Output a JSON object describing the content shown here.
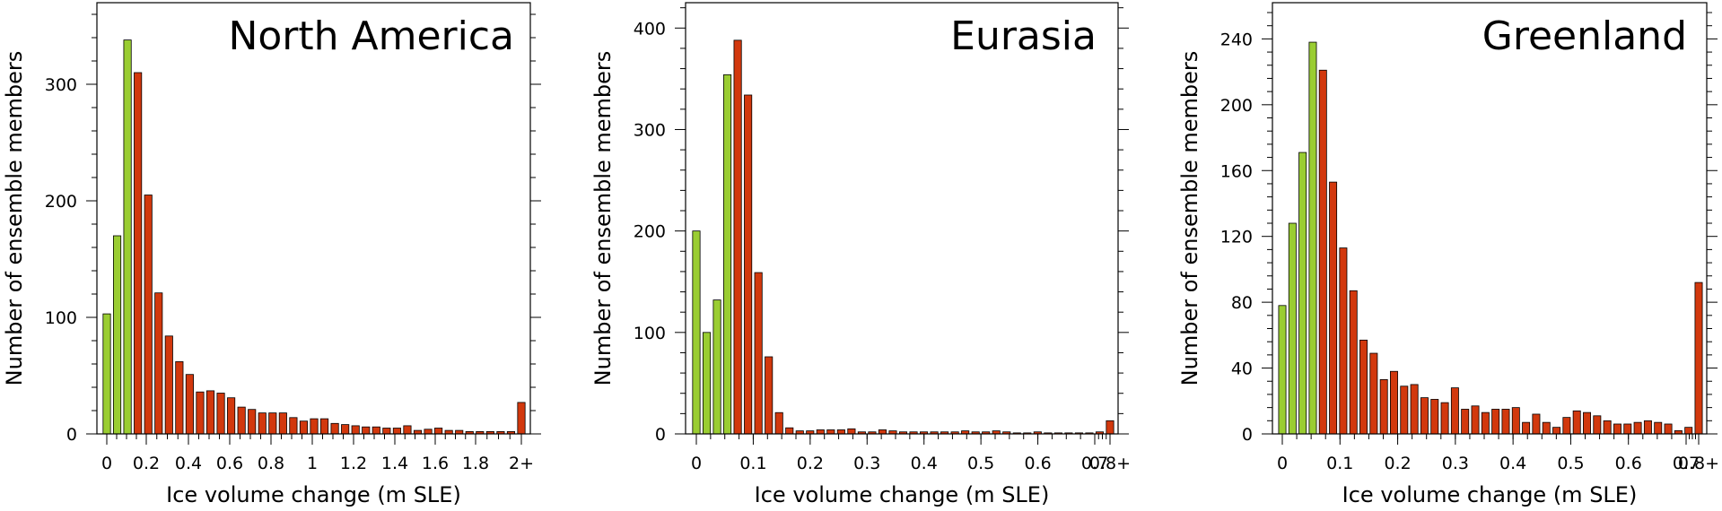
{
  "colors": {
    "green": "#9ACD32",
    "red": "#D2380D",
    "outline": "#000000"
  },
  "chart_data": [
    {
      "type": "bar",
      "title": "North America",
      "xlabel": "Ice volume change (m SLE)",
      "ylabel": "Number of ensemble members",
      "ylim": [
        0,
        370
      ],
      "y_ticks": [
        0,
        100,
        200,
        300
      ],
      "x_ticks": [
        "0",
        "0.2",
        "0.4",
        "0.6",
        "0.8",
        "1",
        "1.2",
        "1.4",
        "1.6",
        "1.8",
        "2+"
      ],
      "values": [
        103,
        170,
        338,
        310,
        205,
        121,
        84,
        62,
        51,
        36,
        37,
        35,
        31,
        23,
        21,
        18,
        18,
        18,
        14,
        11,
        13,
        13,
        9,
        8,
        7,
        6,
        6,
        5,
        5,
        7,
        3,
        4,
        5,
        3,
        3,
        2,
        2,
        2,
        2,
        2,
        27
      ],
      "green_count": 3
    },
    {
      "type": "bar",
      "title": "Eurasia",
      "xlabel": "Ice volume change (m SLE)",
      "ylabel": "Number of ensemble members",
      "ylim": [
        0,
        425
      ],
      "y_ticks": [
        0,
        100,
        200,
        300,
        400
      ],
      "x_ticks": [
        "0",
        "0.1",
        "0.2",
        "0.3",
        "0.4",
        "0.5",
        "0.6",
        "0.7",
        "0.8+"
      ],
      "values": [
        200,
        100,
        132,
        354,
        388,
        334,
        159,
        76,
        21,
        6,
        3,
        3,
        4,
        4,
        4,
        5,
        2,
        2,
        4,
        3,
        2,
        2,
        2,
        2,
        2,
        2,
        3,
        2,
        2,
        3,
        2,
        1,
        1,
        2,
        1,
        1,
        1,
        1,
        1,
        2,
        13
      ],
      "green_count": 4
    },
    {
      "type": "bar",
      "title": "Greenland",
      "xlabel": "Ice volume change (m SLE)",
      "ylabel": "Number of ensemble members",
      "ylim": [
        0,
        262
      ],
      "y_ticks": [
        0,
        40,
        80,
        120,
        160,
        200,
        240
      ],
      "x_ticks": [
        "0",
        "0.1",
        "0.2",
        "0.3",
        "0.4",
        "0.5",
        "0.6",
        "0.7",
        "0.8+"
      ],
      "values": [
        78,
        128,
        171,
        238,
        221,
        153,
        113,
        87,
        57,
        49,
        33,
        38,
        29,
        30,
        22,
        21,
        19,
        28,
        15,
        17,
        13,
        15,
        15,
        16,
        7,
        12,
        7,
        4,
        10,
        14,
        13,
        11,
        8,
        6,
        6,
        7,
        8,
        7,
        6,
        2,
        4,
        92
      ],
      "green_count": 4
    }
  ]
}
